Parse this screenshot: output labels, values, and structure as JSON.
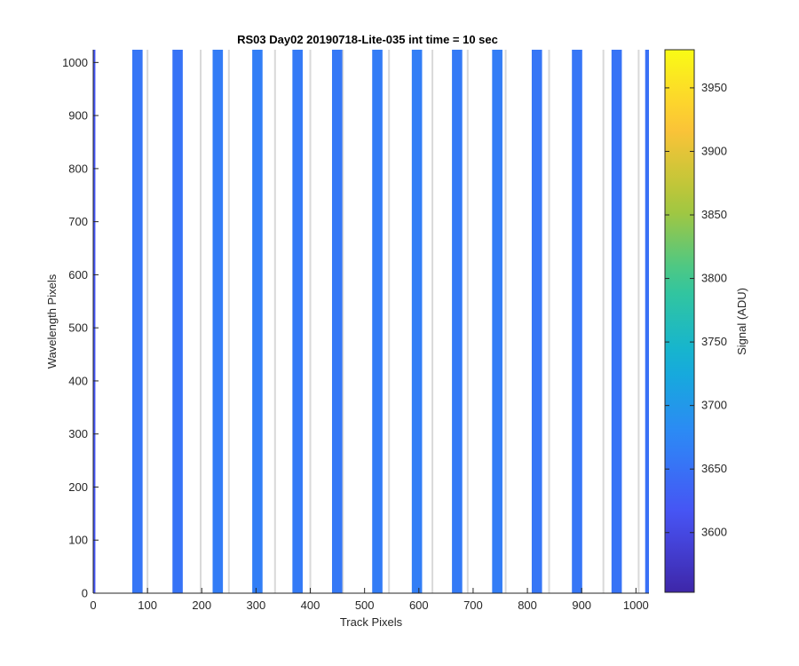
{
  "chart_data": {
    "type": "heatmap",
    "title": "RS03 Day02 20190718-Lite-035 int time = 10 sec",
    "xlabel": "Track Pixels",
    "ylabel": "Wavelength Pixels",
    "xlim": [
      0,
      1024
    ],
    "ylim": [
      0,
      1024
    ],
    "xticks": [
      0,
      100,
      200,
      300,
      400,
      500,
      600,
      700,
      800,
      900,
      1000
    ],
    "yticks": [
      0,
      100,
      200,
      300,
      400,
      500,
      600,
      700,
      800,
      900,
      1000
    ],
    "colorbar": {
      "label": "Signal (ADU)",
      "range": [
        3553,
        3980
      ],
      "ticks": [
        3600,
        3650,
        3700,
        3750,
        3800,
        3850,
        3900,
        3950
      ],
      "colormap": "parula"
    },
    "background_color": "#ffffff",
    "stripes": [
      {
        "x0": 0,
        "x1": 4,
        "signal": 3620
      },
      {
        "x0": 72,
        "x1": 91,
        "signal": 3655
      },
      {
        "x0": 146,
        "x1": 165,
        "signal": 3652
      },
      {
        "x0": 220,
        "x1": 239,
        "signal": 3662
      },
      {
        "x0": 293,
        "x1": 312,
        "signal": 3665
      },
      {
        "x0": 367,
        "x1": 386,
        "signal": 3660
      },
      {
        "x0": 440,
        "x1": 459,
        "signal": 3658
      },
      {
        "x0": 514,
        "x1": 533,
        "signal": 3662
      },
      {
        "x0": 587,
        "x1": 606,
        "signal": 3665
      },
      {
        "x0": 661,
        "x1": 680,
        "signal": 3660
      },
      {
        "x0": 735,
        "x1": 754,
        "signal": 3663
      },
      {
        "x0": 808,
        "x1": 827,
        "signal": 3656
      },
      {
        "x0": 882,
        "x1": 901,
        "signal": 3655
      },
      {
        "x0": 955,
        "x1": 974,
        "signal": 3652
      },
      {
        "x0": 1017,
        "x1": 1024,
        "signal": 3648
      }
    ],
    "faint_lines": [
      {
        "x": 100
      },
      {
        "x": 198
      },
      {
        "x": 250
      },
      {
        "x": 335
      },
      {
        "x": 400
      },
      {
        "x": 460
      },
      {
        "x": 545
      },
      {
        "x": 625
      },
      {
        "x": 690
      },
      {
        "x": 760
      },
      {
        "x": 840
      },
      {
        "x": 940
      },
      {
        "x": 1005
      }
    ]
  }
}
